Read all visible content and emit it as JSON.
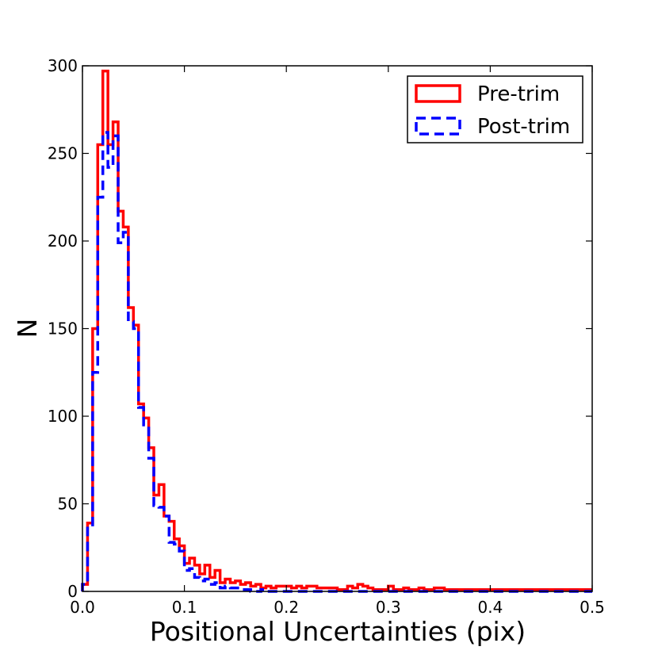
{
  "chart_data": {
    "type": "histogram-step",
    "xlabel": "Positional Uncertainties (pix)",
    "ylabel": "N",
    "xlim": [
      0,
      0.5
    ],
    "ylim": [
      0,
      300
    ],
    "xticks": [
      "0.0",
      "0.1",
      "0.2",
      "0.3",
      "0.4",
      "0.5"
    ],
    "xtick_values": [
      0,
      0.1,
      0.2,
      0.3,
      0.4,
      0.5
    ],
    "yticks": [
      "0",
      "50",
      "100",
      "150",
      "200",
      "250",
      "300"
    ],
    "ytick_values": [
      0,
      50,
      100,
      150,
      200,
      250,
      300
    ],
    "grid": false,
    "legend_position": "top-right",
    "bin_width": 0.005,
    "series": [
      {
        "name": "Pre-trim",
        "color": "#ff0000",
        "style": "solid",
        "values": [
          4,
          39,
          150,
          255,
          297,
          255,
          268,
          217,
          208,
          162,
          152,
          107,
          99,
          82,
          55,
          61,
          43,
          40,
          30,
          26,
          16,
          19,
          15,
          10,
          15,
          8,
          12,
          5,
          7,
          5,
          6,
          4,
          5,
          3,
          4,
          2,
          3,
          2,
          3,
          3,
          3,
          2,
          3,
          2,
          3,
          3,
          2,
          2,
          2,
          2,
          1,
          1,
          3,
          2,
          4,
          3,
          2,
          1,
          1,
          1,
          3,
          1,
          1,
          2,
          1,
          1,
          2,
          1,
          1,
          2,
          2,
          1,
          1,
          1,
          1,
          1,
          1,
          1,
          1,
          1,
          1,
          1,
          1,
          1,
          1,
          1,
          1,
          1,
          1,
          1,
          1,
          1,
          1,
          1,
          1,
          1,
          1,
          1,
          1,
          1
        ]
      },
      {
        "name": "Post-trim",
        "color": "#0000ff",
        "style": "dashed",
        "values": [
          4,
          37,
          125,
          225,
          262,
          242,
          260,
          199,
          205,
          154,
          150,
          105,
          95,
          76,
          49,
          48,
          43,
          28,
          27,
          23,
          12,
          13,
          8,
          6,
          7,
          4,
          5,
          2,
          3,
          2,
          2,
          1,
          1,
          0,
          0,
          1,
          0,
          0,
          0,
          0,
          0,
          0,
          0,
          0,
          0,
          0,
          0,
          0,
          0,
          0,
          0,
          0,
          0,
          0,
          0,
          0,
          0,
          0,
          0,
          0,
          0,
          0,
          0,
          0,
          0,
          0,
          0,
          0,
          0,
          0,
          0,
          0,
          0,
          0,
          0,
          0,
          0,
          0,
          0,
          0,
          0,
          0,
          0,
          0,
          0,
          0,
          0,
          0,
          0,
          0,
          0,
          0,
          0,
          0,
          0,
          0,
          0,
          0,
          0,
          0
        ]
      }
    ]
  }
}
